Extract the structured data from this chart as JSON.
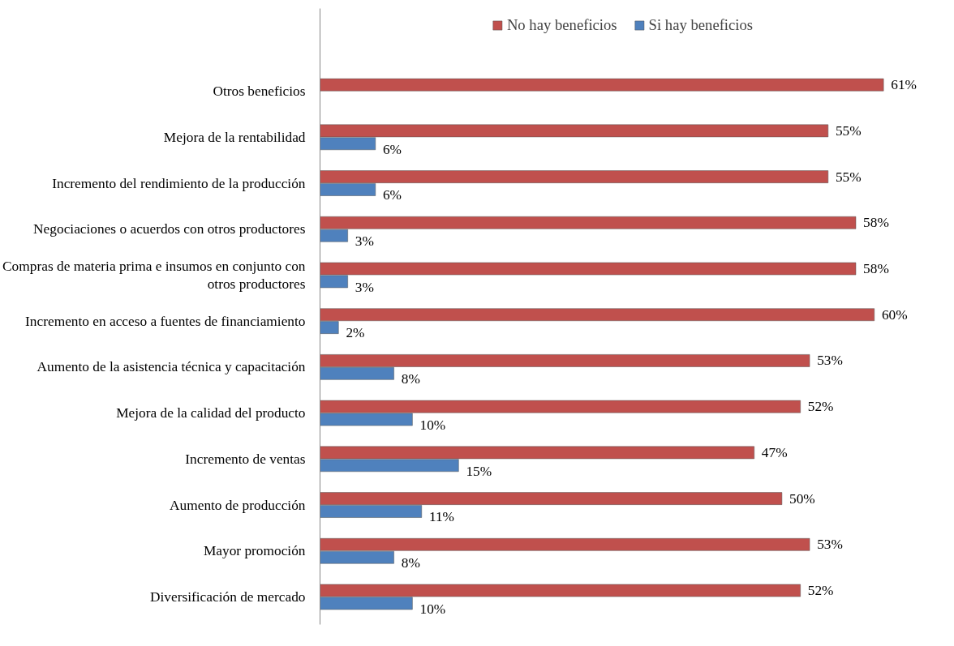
{
  "chart_data": {
    "type": "bar",
    "orientation": "horizontal",
    "categories": [
      "Otros beneficios",
      "Mejora de la rentabilidad",
      "Incremento del rendimiento de la producción",
      "Negociaciones o acuerdos con otros productores",
      "Compras de materia prima e insumos en conjunto con otros productores",
      "Incremento en acceso a fuentes de financiamiento",
      "Aumento de la asistencia técnica y capacitación",
      "Mejora de la calidad del producto",
      "Incremento de ventas",
      "Aumento de producción",
      "Mayor promoción",
      "Diversificación de mercado"
    ],
    "series": [
      {
        "name": "No hay beneficios",
        "color": "#c0504d",
        "values": [
          61,
          55,
          55,
          58,
          58,
          60,
          53,
          52,
          47,
          50,
          53,
          52
        ],
        "value_labels": [
          "61%",
          "55%",
          "55%",
          "58%",
          "58%",
          "60%",
          "53%",
          "52%",
          "47%",
          "50%",
          "53%",
          "52%"
        ]
      },
      {
        "name": "Si hay beneficios",
        "color": "#4f81bd",
        "values": [
          null,
          6,
          6,
          3,
          3,
          2,
          8,
          10,
          15,
          11,
          8,
          10
        ],
        "value_labels": [
          null,
          "6%",
          "6%",
          "3%",
          "3%",
          "2%",
          "8%",
          "10%",
          "15%",
          "11%",
          "8%",
          "10%"
        ]
      }
    ],
    "tick_labels": "y",
    "grid": false,
    "legend": "top"
  }
}
